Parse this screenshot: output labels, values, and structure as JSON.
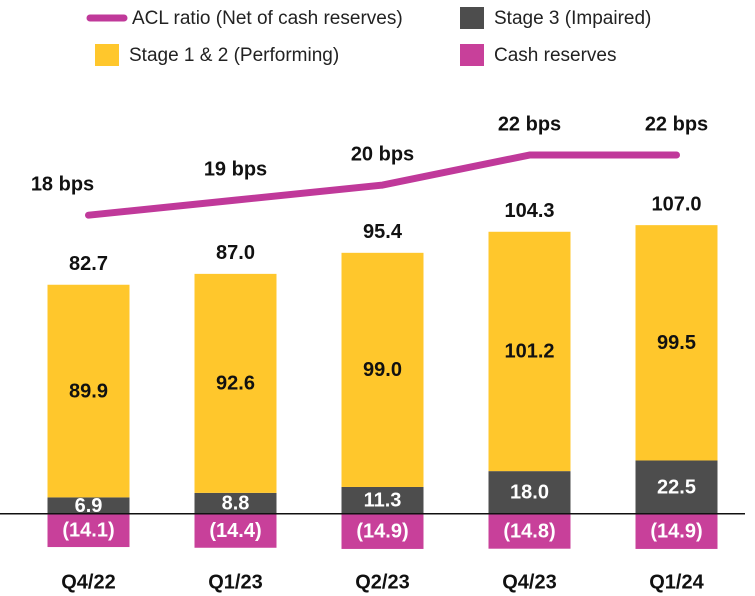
{
  "chart_data": {
    "type": "bar",
    "categories": [
      "Q4/22",
      "Q1/23",
      "Q2/23",
      "Q4/23",
      "Q1/24"
    ],
    "series": [
      {
        "name": "Stage 3 (Impaired)",
        "color": "#4d4d4d",
        "values": [
          6.9,
          8.8,
          11.3,
          18.0,
          22.5
        ],
        "value_labels": [
          "6.9",
          "8.8",
          "11.3",
          "18.0",
          "22.5"
        ],
        "label_color": "#ffffff"
      },
      {
        "name": "Stage 1 & 2 (Performing)",
        "color": "#ffc72c",
        "values": [
          89.9,
          92.6,
          99.0,
          101.2,
          99.5
        ],
        "value_labels": [
          "89.9",
          "92.6",
          "99.0",
          "101.2",
          "99.5"
        ],
        "label_color": "#111111"
      },
      {
        "name": "Cash reserves",
        "color": "#c8409a",
        "values": [
          -14.1,
          -14.4,
          -14.9,
          -14.8,
          -14.9
        ],
        "value_labels": [
          "(14.1)",
          "(14.4)",
          "(14.9)",
          "(14.8)",
          "(14.9)"
        ],
        "label_color": "#ffffff"
      },
      {
        "name": "ACL ratio (Net of cash reserves)",
        "type": "line",
        "axis": "y2",
        "color": "#c0399a",
        "values": [
          18,
          19,
          20,
          22,
          22
        ],
        "value_labels": [
          "18 bps",
          "19 bps",
          "20 bps",
          "22 bps",
          "22 bps"
        ]
      }
    ],
    "totals": [
      82.7,
      87.0,
      95.4,
      104.3,
      107.0
    ],
    "totals_labels": [
      "82.7",
      "87.0",
      "95.4",
      "104.3",
      "107.0"
    ],
    "ylim": [
      -20,
      158
    ],
    "y2lim": [
      -5,
      23
    ],
    "grid": false
  }
}
